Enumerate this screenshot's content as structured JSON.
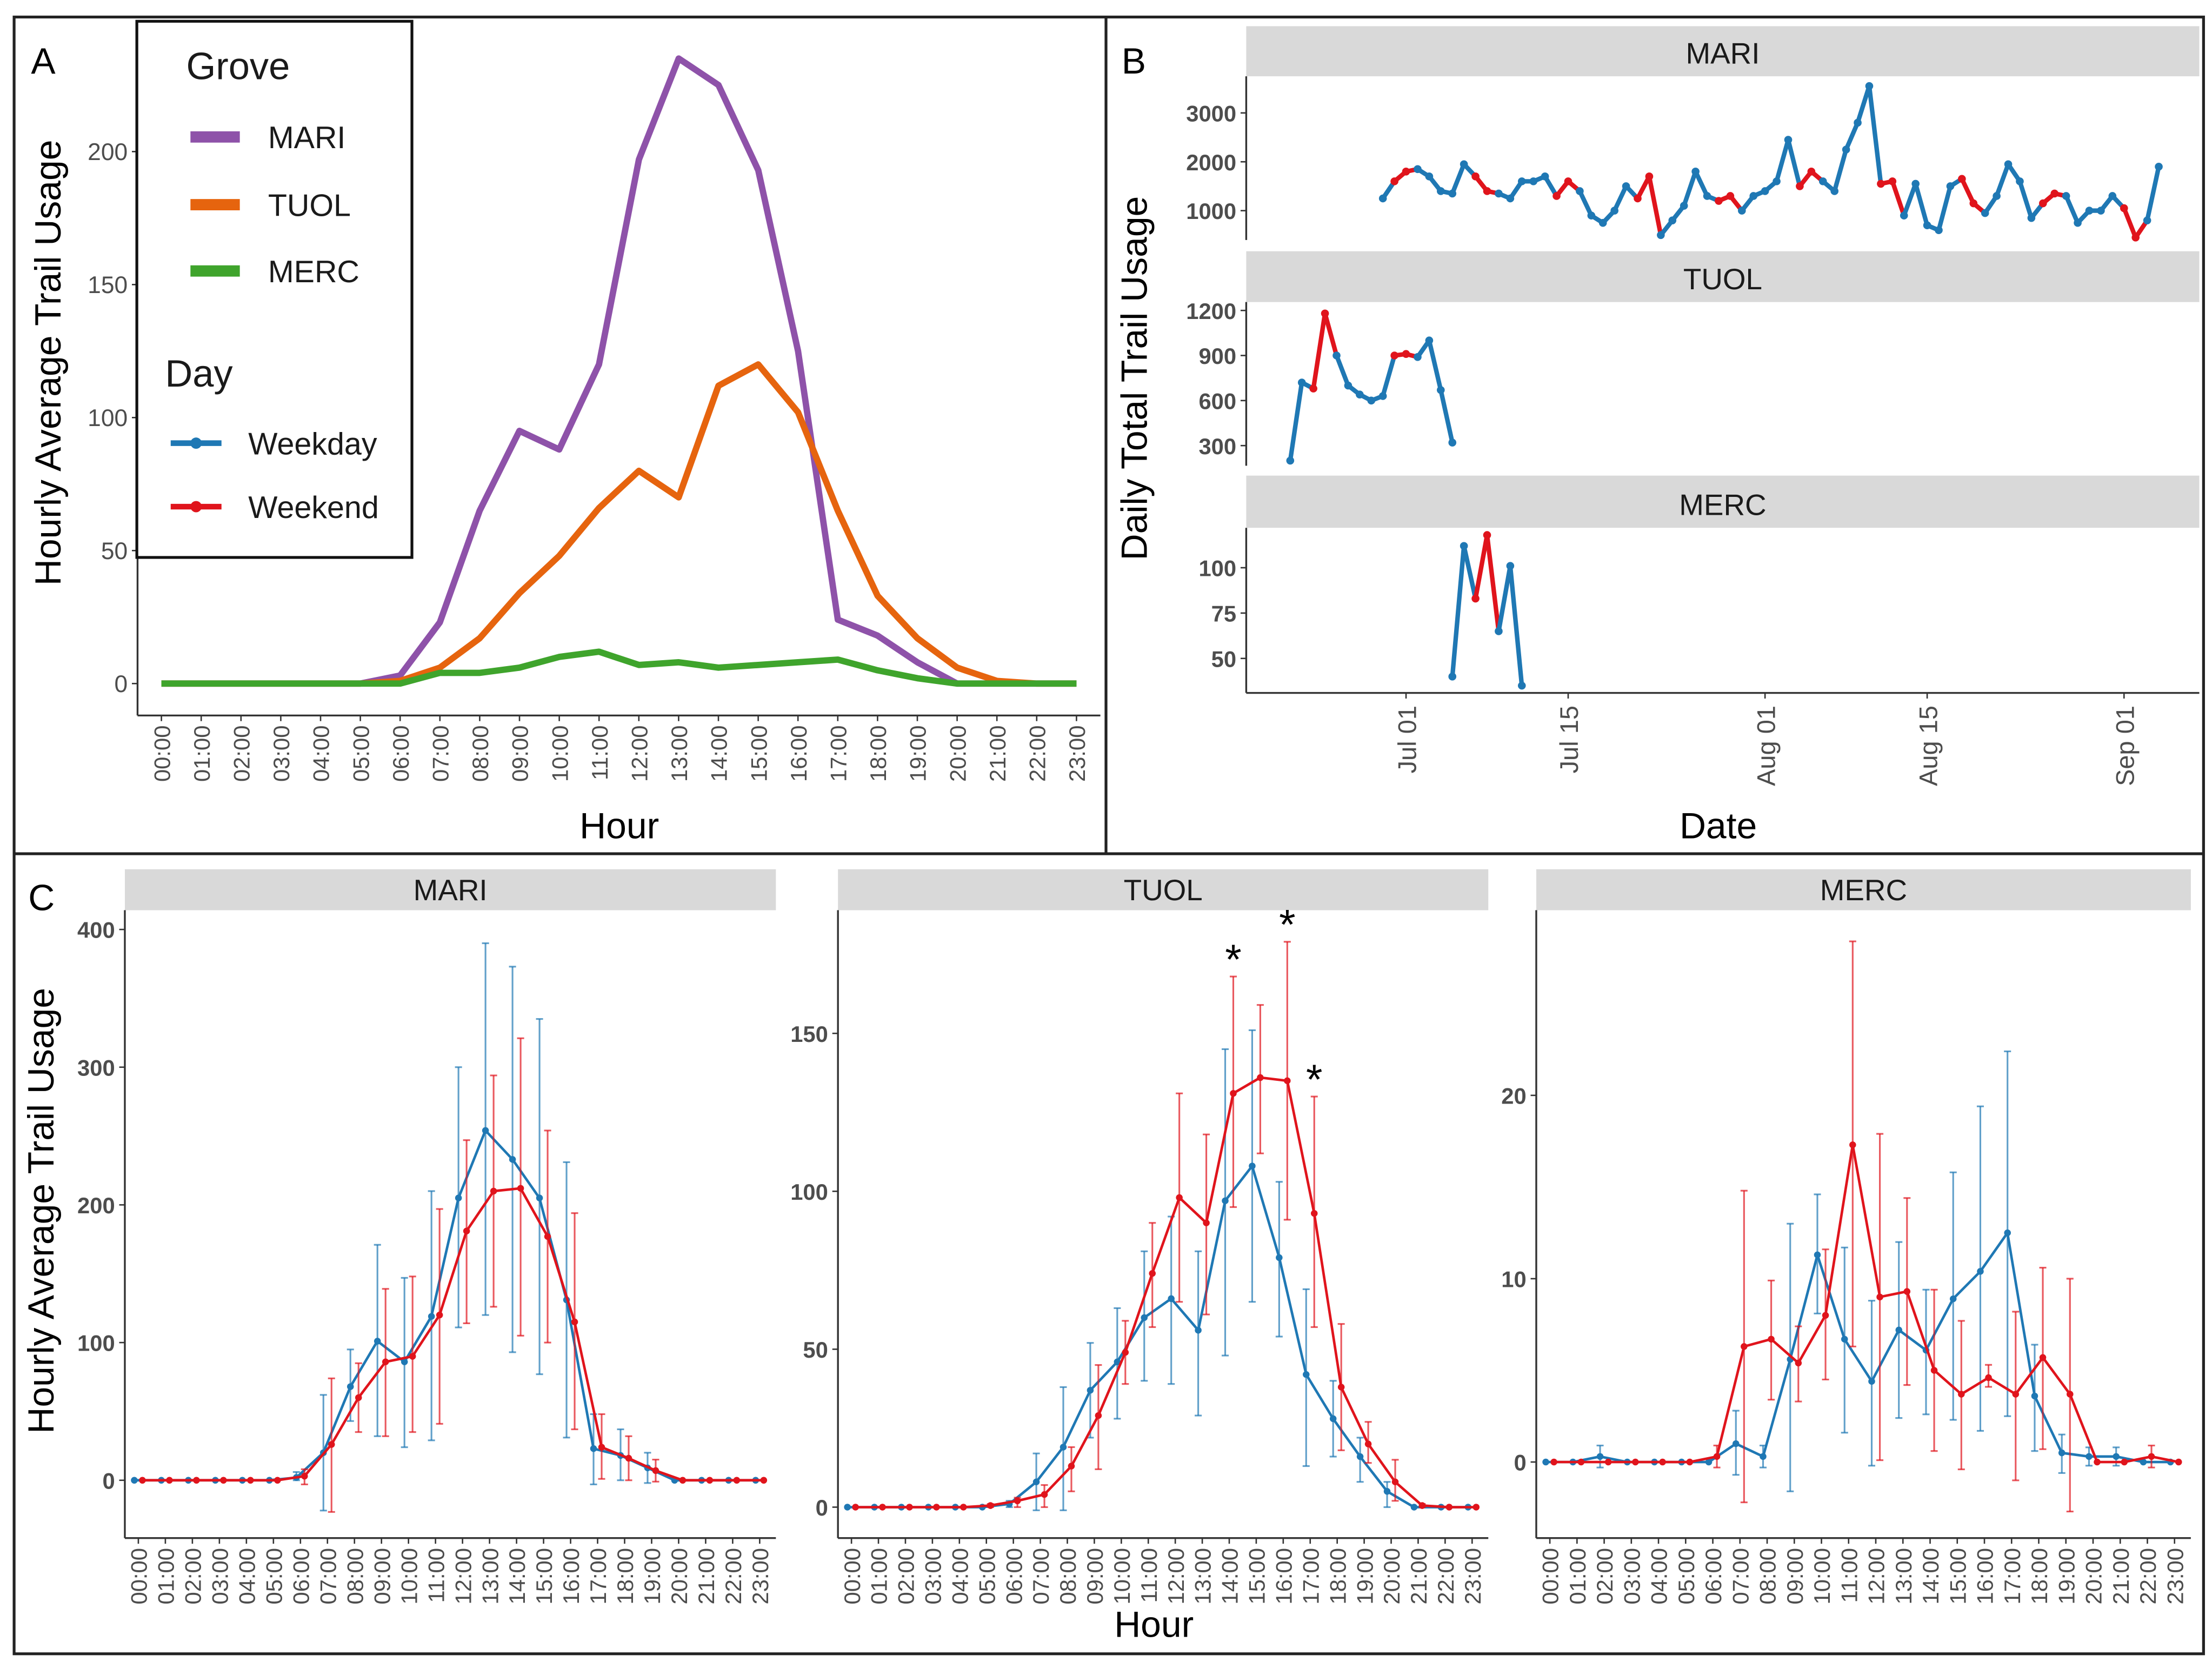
{
  "panels": {
    "a_label": "A",
    "b_label": "B",
    "c_label": "C"
  },
  "colors": {
    "MARI": "#8E52A9",
    "TUOL": "#E6640E",
    "MERC": "#3FA42C",
    "Weekday": "#1F78B4",
    "Weekend": "#E0141C",
    "strip": "#D9D9D9"
  },
  "chart_data": [
    {
      "id": "A",
      "type": "line",
      "xlabel": "Hour",
      "ylabel": "Hourly Average Trail Usage",
      "x_ticks": [
        "00:00",
        "01:00",
        "02:00",
        "03:00",
        "04:00",
        "05:00",
        "06:00",
        "07:00",
        "08:00",
        "09:00",
        "10:00",
        "11:00",
        "12:00",
        "13:00",
        "14:00",
        "15:00",
        "16:00",
        "17:00",
        "18:00",
        "19:00",
        "20:00",
        "21:00",
        "22:00",
        "23:00"
      ],
      "xlim": [
        -0.6,
        23.6
      ],
      "y_ticks": [
        0,
        50,
        100,
        150,
        200
      ],
      "ylim": [
        -12,
        249
      ],
      "legend": {
        "placement": "top-left",
        "grove_title": "Grove",
        "grove": [
          "MARI",
          "TUOL",
          "MERC"
        ],
        "day_title": "Day",
        "day": [
          "Weekday",
          "Weekend"
        ]
      },
      "series": [
        {
          "name": "MARI",
          "values": [
            0,
            0,
            0,
            0,
            0,
            0,
            3,
            23,
            65,
            95,
            88,
            120,
            197,
            235,
            225,
            193,
            125,
            24,
            18,
            8,
            0,
            0,
            0,
            0
          ]
        },
        {
          "name": "TUOL",
          "values": [
            0,
            0,
            0,
            0,
            0,
            0,
            1,
            6,
            17,
            34,
            48,
            66,
            80,
            70,
            112,
            120,
            102,
            65,
            33,
            17,
            6,
            1,
            0,
            0
          ]
        },
        {
          "name": "MERC",
          "values": [
            0,
            0,
            0,
            0,
            0,
            0,
            0,
            4,
            4,
            6,
            10,
            12,
            7,
            8,
            6,
            7,
            8,
            9,
            5,
            2,
            0,
            0,
            0,
            0
          ]
        }
      ]
    },
    {
      "id": "B",
      "type": "line",
      "xlabel": "Date",
      "ylabel": "Daily Total Trail Usage",
      "x_ticks": [
        {
          "label": "Jul 01",
          "day": 0
        },
        {
          "label": "Jul 15",
          "day": 14
        },
        {
          "label": "Aug 01",
          "day": 31
        },
        {
          "label": "Aug 15",
          "day": 45
        },
        {
          "label": "Sep 01",
          "day": 62
        }
      ],
      "xlim": [
        -13.8,
        68.5
      ],
      "facets": [
        {
          "name": "MARI",
          "y_ticks": [
            1000,
            2000,
            3000
          ],
          "ylim": [
            400,
            3750
          ],
          "start_day": -2,
          "values": [
            1250,
            1600,
            1800,
            1850,
            1700,
            1400,
            1350,
            1950,
            1700,
            1400,
            1350,
            1250,
            1600,
            1600,
            1700,
            1300,
            1600,
            1400,
            900,
            750,
            1000,
            1500,
            1250,
            1700,
            500,
            800,
            1100,
            1800,
            1300,
            1200,
            1300,
            1000,
            1300,
            1400,
            1600,
            2450,
            1500,
            1800,
            1600,
            1400,
            2250,
            2800,
            3550,
            1550,
            1600,
            900,
            1550,
            700,
            600,
            1500,
            1650,
            1150,
            950,
            1300,
            1950,
            1600,
            850,
            1150,
            1350,
            1300,
            750,
            1000,
            1000,
            1300,
            1050,
            450,
            800,
            1900
          ]
        },
        {
          "name": "TUOL",
          "y_ticks": [
            300,
            600,
            900,
            1200
          ],
          "ylim": [
            166,
            1256
          ],
          "start_day": -10,
          "values": [
            200,
            720,
            680,
            1180,
            900,
            700,
            640,
            600,
            630,
            900,
            910,
            890,
            1000,
            670,
            320
          ]
        },
        {
          "name": "MERC",
          "y_ticks": [
            50,
            75,
            100
          ],
          "ylim": [
            31,
            122
          ],
          "start_day": 4,
          "values": [
            40,
            112,
            83,
            118,
            65,
            101,
            35
          ]
        }
      ]
    },
    {
      "id": "C",
      "type": "line",
      "xlabel": "Hour",
      "ylabel": "Hourly Average Trail Usage",
      "x_ticks": [
        "00:00",
        "01:00",
        "02:00",
        "03:00",
        "04:00",
        "05:00",
        "06:00",
        "07:00",
        "08:00",
        "09:00",
        "10:00",
        "11:00",
        "12:00",
        "13:00",
        "14:00",
        "15:00",
        "16:00",
        "17:00",
        "18:00",
        "19:00",
        "20:00",
        "21:00",
        "22:00",
        "23:00"
      ],
      "xlim": [
        -0.5,
        23.6
      ],
      "facets": [
        {
          "name": "MARI",
          "y_ticks": [
            0,
            100,
            200,
            300,
            400
          ],
          "ylim": [
            -42,
            414
          ],
          "weekday": {
            "mean": [
              0,
              0,
              0,
              0,
              0,
              0,
              2,
              20,
              68,
              101,
              86,
              119,
              205,
              254,
              233,
              205,
              131,
              23,
              18,
              9,
              0,
              0,
              0,
              0
            ],
            "lo": [
              0,
              0,
              0,
              0,
              0,
              0,
              0,
              -22,
              43,
              32,
              24,
              29,
              111,
              120,
              93,
              77,
              31,
              -3,
              0,
              -2,
              0,
              0,
              0,
              0
            ],
            "hi": [
              0,
              0,
              0,
              0,
              0,
              0,
              6,
              62,
              95,
              171,
              147,
              210,
              300,
              390,
              373,
              335,
              231,
              48,
              37,
              20,
              0,
              0,
              0,
              0
            ]
          },
          "weekend": {
            "mean": [
              0,
              0,
              0,
              0,
              0,
              0,
              3,
              26,
              60,
              86,
              90,
              120,
              181,
              210,
              212,
              177,
              115,
              24,
              16,
              7,
              0,
              0,
              0,
              0
            ],
            "lo": [
              0,
              0,
              0,
              0,
              0,
              0,
              -3,
              -23,
              35,
              32,
              35,
              41,
              114,
              126,
              105,
              100,
              37,
              1,
              0,
              -1,
              0,
              0,
              0,
              0
            ],
            "hi": [
              0,
              0,
              0,
              0,
              0,
              0,
              8,
              74,
              85,
              139,
              148,
              197,
              247,
              294,
              321,
              254,
              194,
              48,
              32,
              15,
              0,
              0,
              0,
              0
            ]
          },
          "significance": []
        },
        {
          "name": "TUOL",
          "y_ticks": [
            0,
            50,
            100,
            150
          ],
          "ylim": [
            -9.8,
            189
          ],
          "weekday": {
            "mean": [
              0,
              0,
              0,
              0,
              0,
              0,
              1,
              8,
              19,
              37,
              46,
              60,
              66,
              56,
              97,
              108,
              79,
              42,
              28,
              16,
              5,
              0,
              0,
              0
            ],
            "lo": [
              0,
              0,
              0,
              0,
              0,
              0,
              0,
              -1,
              -1,
              22,
              28,
              40,
              39,
              29,
              48,
              65,
              54,
              13,
              16,
              8,
              0,
              0,
              0,
              0
            ],
            "hi": [
              0,
              0,
              0,
              0,
              0,
              0,
              2,
              17,
              38,
              52,
              63,
              81,
              92,
              81,
              145,
              151,
              103,
              69,
              40,
              22,
              8,
              0,
              0,
              0
            ]
          },
          "weekend": {
            "mean": [
              0,
              0,
              0,
              0,
              0,
              0.5,
              2,
              4,
              13,
              29,
              49,
              74,
              98,
              90,
              131,
              136,
              135,
              93,
              38,
              20,
              8,
              0.5,
              0,
              0
            ],
            "lo": [
              0,
              0,
              0,
              0,
              0,
              0,
              0,
              0,
              5,
              12,
              39,
              57,
              65,
              61,
              95,
              112,
              91,
              57,
              18,
              14,
              2,
              0,
              0,
              0
            ],
            "hi": [
              0,
              0,
              0,
              0,
              0,
              1,
              3,
              7,
              19,
              45,
              59,
              90,
              131,
              118,
              168,
              159,
              179,
              130,
              58,
              27,
              15,
              1,
              0,
              0
            ]
          },
          "significance": [
            {
              "hour": 14,
              "label": "*"
            },
            {
              "hour": 16,
              "label": "*"
            },
            {
              "hour": 17,
              "label": "*"
            }
          ]
        },
        {
          "name": "MERC",
          "y_ticks": [
            0,
            10,
            20
          ],
          "ylim": [
            -4.15,
            30.1
          ],
          "weekday": {
            "mean": [
              0,
              0,
              0.3,
              0,
              0,
              0,
              0,
              1,
              0.3,
              5.6,
              11.3,
              6.7,
              4.4,
              7.2,
              6.1,
              8.9,
              10.4,
              12.5,
              3.6,
              0.5,
              0.3,
              0.3,
              0,
              0
            ],
            "lo": [
              0,
              0,
              -0.3,
              0,
              0,
              0,
              0,
              -0.7,
              -0.3,
              -1.6,
              8.1,
              1.6,
              -0.2,
              2.4,
              2.6,
              2.3,
              1.7,
              2.5,
              0.6,
              -0.6,
              -0.2,
              -0.2,
              0,
              0
            ],
            "hi": [
              0,
              0,
              0.9,
              0,
              0,
              0,
              0,
              2.8,
              0.9,
              13,
              14.6,
              11.7,
              8.8,
              12,
              9.4,
              15.8,
              19.4,
              22.4,
              6.4,
              1.5,
              0.8,
              0.8,
              0,
              0
            ]
          },
          "weekend": {
            "mean": [
              0,
              0,
              0,
              0,
              0,
              0,
              0.3,
              6.3,
              6.7,
              5.4,
              8,
              17.3,
              9,
              9.3,
              5,
              3.7,
              4.6,
              3.7,
              5.7,
              3.7,
              0,
              0,
              0.3,
              0
            ],
            "lo": [
              0,
              0,
              0,
              0,
              0,
              0,
              -0.3,
              -2.2,
              3.4,
              3.3,
              4.5,
              6.3,
              0.1,
              4.2,
              0.6,
              -0.4,
              4.1,
              -1,
              0.7,
              -2.7,
              0,
              0,
              -0.3,
              0
            ],
            "hi": [
              0,
              0,
              0,
              0,
              0,
              0,
              0.9,
              14.8,
              9.9,
              7.4,
              11.6,
              28.4,
              17.9,
              14.4,
              9.4,
              7.7,
              5.3,
              8.2,
              10.6,
              10,
              0,
              0,
              0.9,
              0
            ]
          },
          "significance": []
        }
      ]
    }
  ]
}
